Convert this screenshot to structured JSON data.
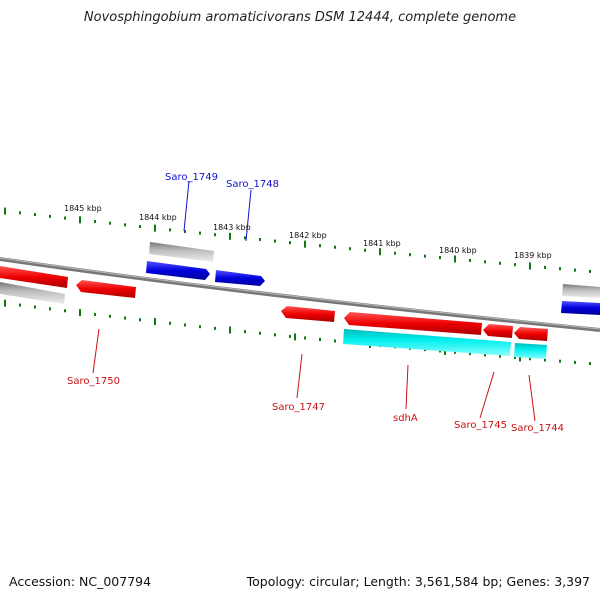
{
  "title": "Novosphingobium aromaticivorans DSM 12444, complete genome",
  "accession_text": "Accession: NC_007794",
  "topology_text": "Topology: circular; Length: 3,561,584 bp; Genes: 3,397",
  "colors": {
    "forward_cds": "#ee1111",
    "reverse_cds": "#1111dd",
    "rna": "#00dddd",
    "gene": "#aaaaaa",
    "backbone": "#888888",
    "tick": "#117711",
    "label_forward": "#1111cc",
    "label_reverse": "#cc1111",
    "kbp_label": "#111111"
  },
  "ticks_kbp": [
    "1845 kbp",
    "1844 kbp",
    "1843 kbp",
    "1842 kbp",
    "1841 kbp",
    "1840 kbp",
    "1839 kbp"
  ],
  "gene_labels": {
    "saro_1749": "Saro_1749",
    "saro_1748": "Saro_1748",
    "saro_1750": "Saro_1750",
    "saro_1747": "Saro_1747",
    "sdha": "sdhA",
    "saro_1745": "Saro_1745",
    "saro_1744": "Saro_1744"
  }
}
